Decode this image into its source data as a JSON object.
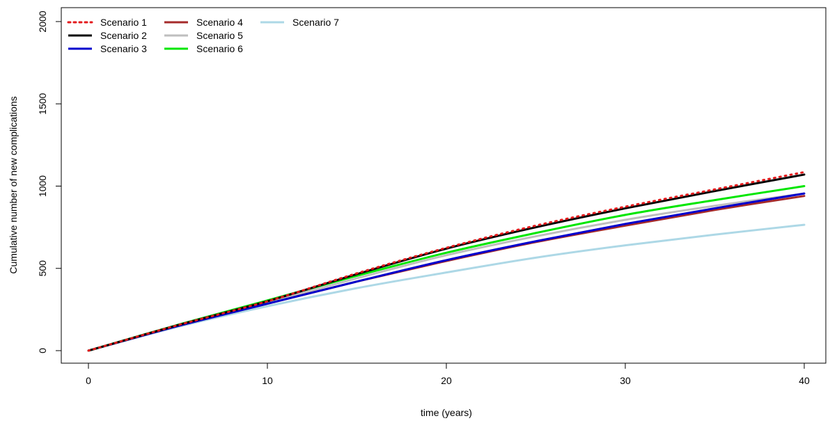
{
  "chart_data": {
    "type": "line",
    "title": "",
    "xlabel": "time (years)",
    "ylabel": "Cumulative number of new complications",
    "xlim": [
      0,
      40
    ],
    "ylim": [
      0,
      2000
    ],
    "xticks": [
      "0",
      "10",
      "20",
      "30",
      "40"
    ],
    "yticks": [
      "0",
      "500",
      "1000",
      "1500",
      "2000"
    ],
    "grid": false,
    "legend_position": "top-left",
    "x": [
      0,
      5,
      10,
      15,
      20,
      25,
      30,
      35,
      40
    ],
    "series": [
      {
        "name": "Scenario 1",
        "color": "#e31a1c",
        "style": "dotted",
        "values": [
          0,
          155,
          300,
          470,
          625,
          760,
          875,
          980,
          1085
        ]
      },
      {
        "name": "Scenario 2",
        "color": "#000000",
        "style": "solid",
        "values": [
          0,
          155,
          300,
          465,
          620,
          750,
          865,
          970,
          1070
        ]
      },
      {
        "name": "Scenario 3",
        "color": "#0000cd",
        "style": "solid",
        "values": [
          0,
          150,
          285,
          420,
          550,
          665,
          770,
          865,
          955
        ]
      },
      {
        "name": "Scenario 4",
        "color": "#a52a2a",
        "style": "solid",
        "values": [
          0,
          150,
          285,
          420,
          545,
          660,
          760,
          855,
          940
        ]
      },
      {
        "name": "Scenario 5",
        "color": "#bebebe",
        "style": "solid",
        "values": [
          0,
          152,
          292,
          440,
          580,
          695,
          795,
          880,
          955
        ]
      },
      {
        "name": "Scenario 6",
        "color": "#00e600",
        "style": "solid",
        "values": [
          0,
          157,
          305,
          455,
          595,
          715,
          825,
          915,
          1000
        ]
      },
      {
        "name": "Scenario 7",
        "color": "#add8e6",
        "style": "solid",
        "values": [
          0,
          145,
          270,
          380,
          475,
          565,
          640,
          705,
          765
        ]
      }
    ]
  }
}
